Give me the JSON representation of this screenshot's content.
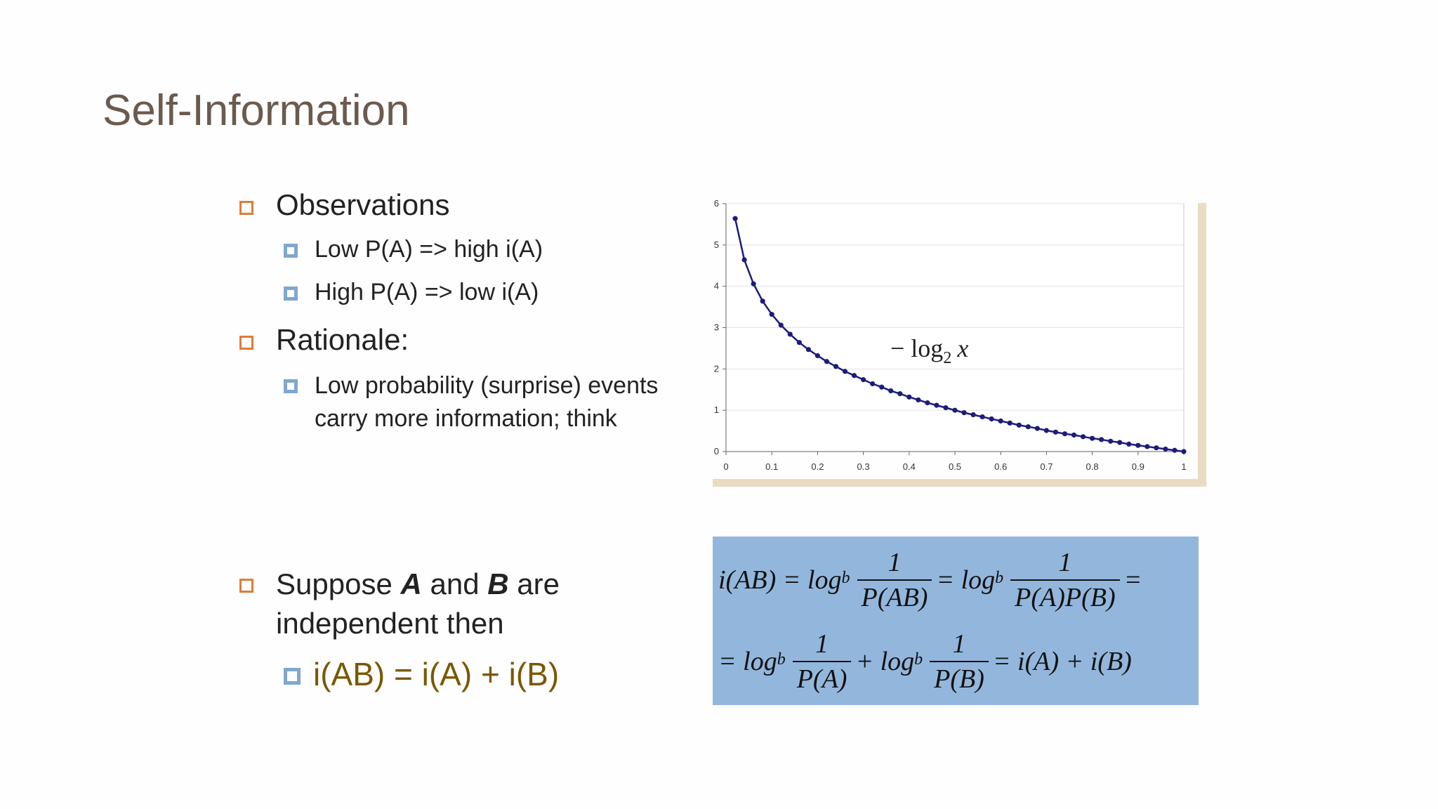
{
  "title": "Self-Information",
  "bullets": [
    {
      "text": "Observations",
      "items": [
        "Low P(A) => high i(A)",
        "High P(A) => low i(A)"
      ]
    },
    {
      "text": "Rationale:",
      "items": [
        "Low probability (surprise) events carry more information; think"
      ]
    },
    {
      "runs": [
        {
          "text": "Suppose "
        },
        {
          "text": "A",
          "emphasis": true
        },
        {
          "text": " and "
        },
        {
          "text": "B",
          "emphasis": true
        },
        {
          "text": " are independent then"
        }
      ],
      "items": [
        "i(AB) = i(A) + i(B)"
      ]
    }
  ],
  "chart_data": {
    "type": "line",
    "annotation": {
      "text": "− log",
      "subscript": "2",
      "variable": "x"
    },
    "x": [
      0.02,
      0.04,
      0.06,
      0.08,
      0.1,
      0.12,
      0.14,
      0.16,
      0.18,
      0.2,
      0.22,
      0.24,
      0.26,
      0.28,
      0.3,
      0.32,
      0.34,
      0.36,
      0.38,
      0.4,
      0.42,
      0.44,
      0.46,
      0.48,
      0.5,
      0.52,
      0.54,
      0.56,
      0.58,
      0.6,
      0.62,
      0.64,
      0.66,
      0.68,
      0.7,
      0.72,
      0.74,
      0.76,
      0.78,
      0.8,
      0.82,
      0.84,
      0.86,
      0.88,
      0.9,
      0.92,
      0.94,
      0.96,
      0.98,
      1
    ],
    "series": [
      {
        "color": "#1c1c7c",
        "values": [
          5.64,
          4.64,
          4.06,
          3.64,
          3.32,
          3.06,
          2.84,
          2.64,
          2.47,
          2.32,
          2.18,
          2.06,
          1.94,
          1.84,
          1.74,
          1.64,
          1.56,
          1.47,
          1.4,
          1.32,
          1.25,
          1.18,
          1.12,
          1.06,
          1,
          0.94,
          0.89,
          0.84,
          0.79,
          0.74,
          0.69,
          0.64,
          0.6,
          0.56,
          0.51,
          0.47,
          0.43,
          0.4,
          0.36,
          0.32,
          0.29,
          0.25,
          0.22,
          0.18,
          0.15,
          0.12,
          0.09,
          0.06,
          0.03,
          0
        ]
      }
    ],
    "xlim": [
      0,
      1
    ],
    "ylim": [
      0,
      6
    ],
    "xticks": [
      0,
      0.1,
      0.2,
      0.3,
      0.4,
      0.5,
      0.6,
      0.7,
      0.8,
      0.9,
      1
    ],
    "yticks": [
      0,
      1,
      2,
      3,
      4,
      5,
      6
    ],
    "grid": true
  },
  "formula": {
    "lines": [
      [
        {
          "text": "i(AB) = log"
        },
        {
          "sub": "b"
        },
        {
          "num": "1",
          "den": "P(AB)"
        },
        {
          "text": "= log"
        },
        {
          "sub": "b"
        },
        {
          "num": "1",
          "den": "P(A)P(B)"
        },
        {
          "text": "="
        }
      ],
      [
        {
          "text": "= log"
        },
        {
          "sub": "b"
        },
        {
          "num": "1",
          "den": "P(A)"
        },
        {
          "text": "+ log"
        },
        {
          "sub": "b"
        },
        {
          "num": "1",
          "den": "P(B)"
        },
        {
          "text": "= i(A) + i(B)"
        }
      ]
    ]
  }
}
